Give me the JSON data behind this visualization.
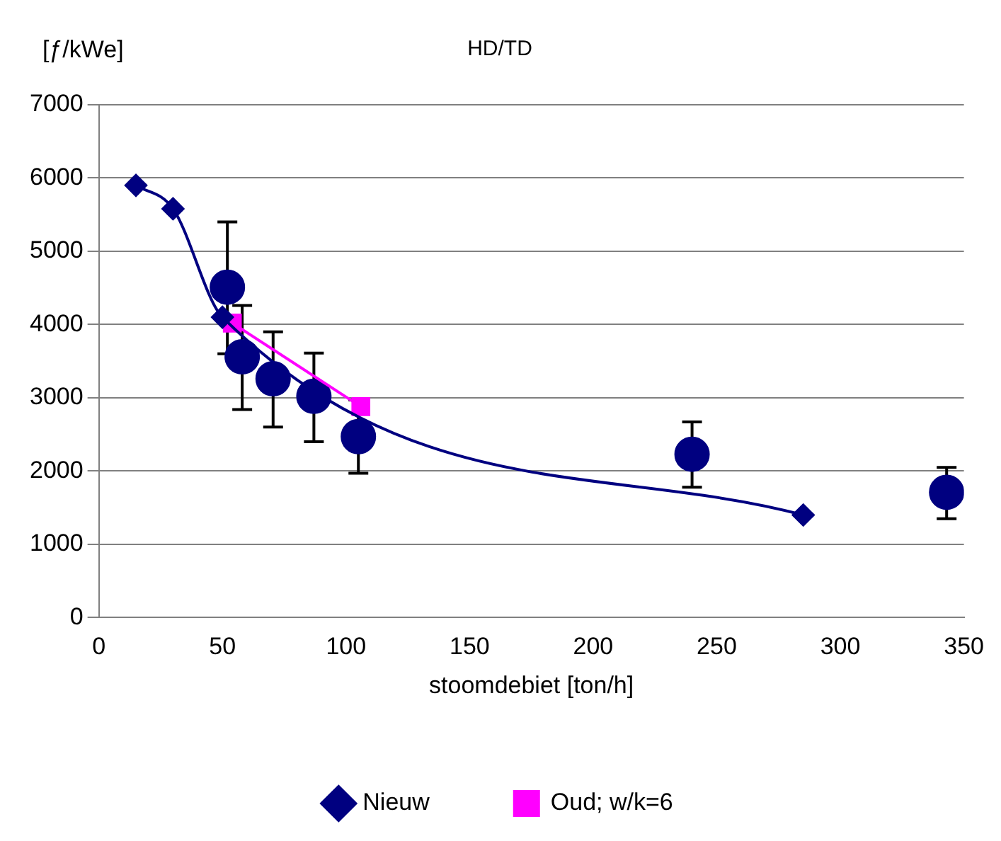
{
  "chart_data": {
    "type": "line",
    "title": "HD/TD",
    "xlabel": "stoomdebiet [ton/h]",
    "ylabel": "[ƒ/kWe]",
    "xlim": [
      0,
      350
    ],
    "xticks": [
      0,
      50,
      100,
      150,
      200,
      250,
      300,
      350
    ],
    "ylim": [
      0,
      7000
    ],
    "yticks": [
      0,
      1000,
      2000,
      3000,
      4000,
      5000,
      6000,
      7000
    ],
    "grid": "y",
    "legend": "bottom",
    "series": [
      {
        "name": "Nieuw",
        "color": "#000080",
        "marker": "diamond",
        "x": [
          15,
          30,
          50,
          285
        ],
        "values": [
          5900,
          5580,
          4100,
          1400
        ]
      },
      {
        "name": "Oud; w/k=6",
        "color": "#ff00ff",
        "marker": "square",
        "x": [
          54,
          106
        ],
        "values": [
          4020,
          2880
        ]
      },
      {
        "type": "scatter",
        "color": "#000080",
        "marker": "circle",
        "x": [
          52,
          58,
          70.5,
          87,
          105,
          240,
          343
        ],
        "values": [
          4510,
          3560,
          3260,
          3020,
          2470,
          2230,
          1710
        ],
        "errors": [
          [
            3600,
            5400
          ],
          [
            2840,
            4260
          ],
          [
            2600,
            3900
          ],
          [
            2400,
            3610
          ],
          [
            1970,
            2970
          ],
          [
            1780,
            2670
          ],
          [
            1350,
            2050
          ]
        ]
      }
    ]
  }
}
